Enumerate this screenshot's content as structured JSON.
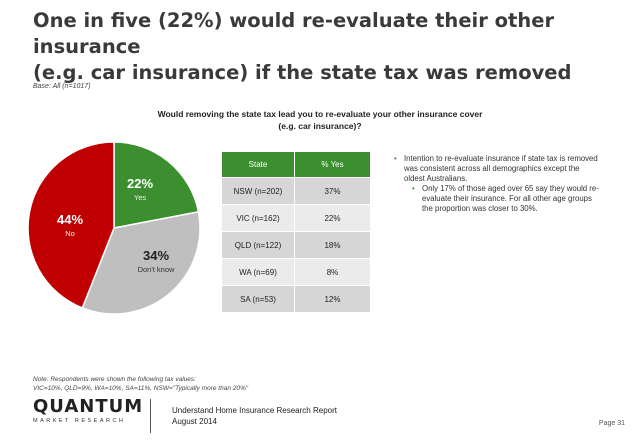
{
  "header": {
    "title_line1": "One in five (22%) would re-evaluate their other insurance",
    "title_line2": "(e.g. car insurance) if the state tax was removed",
    "base": "Base: All (n=1017)"
  },
  "question": {
    "line1": "Would removing the state tax lead you to re-evaluate your other insurance cover",
    "line2": "(e.g. car insurance)?"
  },
  "chart_data": {
    "type": "pie",
    "title": "Would removing the state tax lead you to re-evaluate your other insurance cover (e.g. car insurance)?",
    "slices": [
      {
        "label": "Yes",
        "value": 22,
        "display": "22%",
        "color": "#3b8f2f"
      },
      {
        "label": "Don't know",
        "value": 34,
        "display": "34%",
        "color": "#bfbfbf"
      },
      {
        "label": "No",
        "value": 44,
        "display": "44%",
        "color": "#c00000"
      }
    ]
  },
  "table": {
    "headers": [
      "State",
      "% Yes"
    ],
    "rows": [
      [
        "NSW (n=202)",
        "37%"
      ],
      [
        "VIC (n=162)",
        "22%"
      ],
      [
        "QLD (n=122)",
        "18%"
      ],
      [
        "WA (n=69)",
        "8%"
      ],
      [
        "SA (n=53)",
        "12%"
      ]
    ]
  },
  "bullets": {
    "main": "Intention to re-evaluate insurance if state tax is removed was consistent across all demographics except the oldest Australians.",
    "sub": "Only 17% of those aged over 65 say they would re-evaluate their insurance. For all other age groups the proportion was closer to 30%."
  },
  "note": {
    "line1": "Note: Respondents were shown the following tax values:",
    "line2": "VIC=10%, QLD=9%, WA=10%, SA=11%, NSW=\"Typically more than 20%\""
  },
  "footer": {
    "logo": "QUANTUM",
    "logo_sub": "MARKET RESEARCH",
    "report_line1": "Understand Home Insurance Research Report",
    "report_line2": "August 2014",
    "page": "Page 31"
  },
  "colors": {
    "brand_green": "#3b8f2f",
    "red": "#c00000",
    "grey": "#bfbfbf"
  }
}
